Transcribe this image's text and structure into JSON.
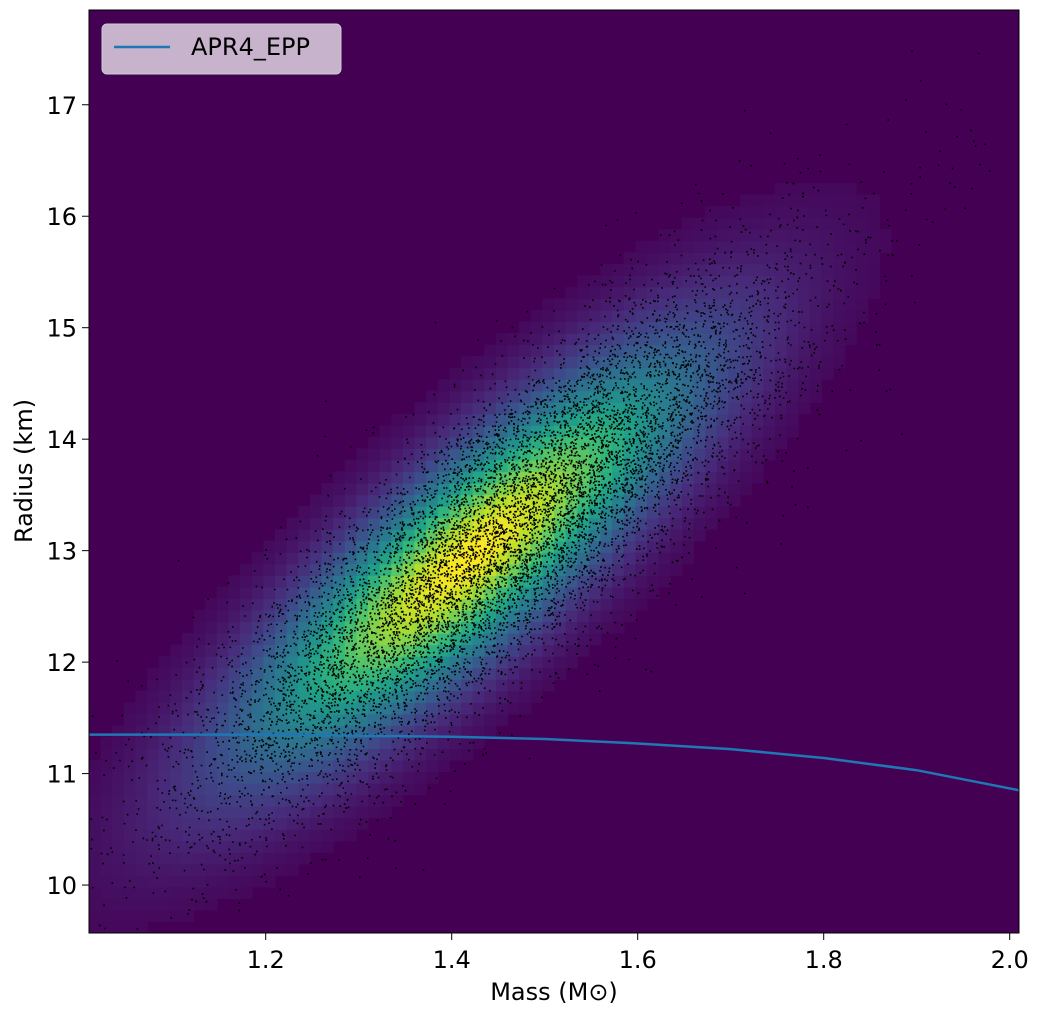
{
  "chart_data": {
    "type": "scatter",
    "xlabel": "Mass (M⊙)",
    "ylabel": "Radius (km)",
    "xlim": [
      1.01,
      2.01
    ],
    "ylim": [
      9.57,
      17.85
    ],
    "xticks": [
      1.2,
      1.4,
      1.6,
      1.8,
      2.0
    ],
    "xtick_labels": [
      "1.2",
      "1.4",
      "1.6",
      "1.8",
      "2.0"
    ],
    "yticks": [
      10,
      11,
      12,
      13,
      14,
      15,
      16,
      17
    ],
    "ytick_labels": [
      "10",
      "11",
      "12",
      "13",
      "14",
      "15",
      "16",
      "17"
    ],
    "grid": false,
    "legend": {
      "position": "top-left",
      "entries": [
        {
          "label": "APR4_EPP",
          "color": "#1f77b4"
        }
      ]
    },
    "series": [
      {
        "name": "APR4_EPP",
        "kind": "line",
        "color": "#1f77b4",
        "x": [
          1.01,
          1.1,
          1.2,
          1.3,
          1.4,
          1.5,
          1.6,
          1.7,
          1.8,
          1.9,
          2.01
        ],
        "y": [
          11.35,
          11.35,
          11.35,
          11.34,
          11.33,
          11.31,
          11.27,
          11.22,
          11.14,
          11.03,
          10.85
        ]
      }
    ],
    "samples": {
      "kind": "scatter",
      "color": "#000000",
      "count": 9000,
      "mean": [
        1.45,
        13.1
      ],
      "std": [
        0.16,
        1.2
      ],
      "correlation": 0.85
    },
    "density": {
      "kind": "heatmap",
      "colormap": "viridis",
      "background": "#440154",
      "peak": [
        1.42,
        12.95
      ]
    }
  }
}
